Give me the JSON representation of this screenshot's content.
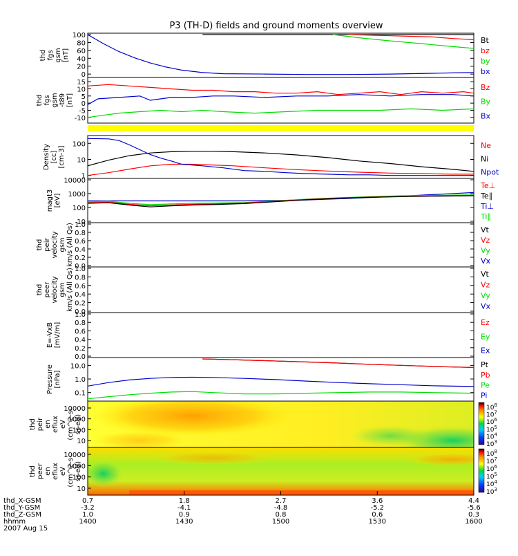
{
  "title": "P3 (TH-D) fields and ground moments overview",
  "colors": {
    "black": "#000000",
    "red": "#ff0000",
    "green": "#00dd00",
    "blue": "#0000cc",
    "yellow": "#ffff00"
  },
  "chart_data": {
    "type": "line",
    "panels": [
      {
        "id": "fgs-mag",
        "ylabel_lines": [
          "thd",
          "fgs",
          "gsm",
          "[nT]"
        ],
        "ylim": [
          -5,
          100
        ],
        "yticks": [
          "100",
          "80",
          "60",
          "40",
          "20",
          "0"
        ],
        "legend": [
          {
            "text": "Bt",
            "color": "black"
          },
          {
            "text": "bz",
            "color": "red"
          },
          {
            "text": "by",
            "color": "green"
          },
          {
            "text": "bx",
            "color": "blue"
          }
        ],
        "series": [
          {
            "name": "Bt",
            "color": "black",
            "x": [
              1.8,
              2.2,
              2.7,
              3.2,
              3.6,
              4.0,
              4.4
            ],
            "y": [
              100,
              100,
              100,
              100,
              100,
              100,
              100
            ]
          },
          {
            "name": "bz",
            "color": "red",
            "x": [
              3.2,
              3.6,
              4.0,
              4.2,
              4.4
            ],
            "y": [
              100,
              97,
              94,
              90,
              87
            ]
          },
          {
            "name": "by",
            "color": "green",
            "x": [
              3.05,
              3.3,
              3.6,
              3.9,
              4.1,
              4.4
            ],
            "y": [
              100,
              92,
              84,
              77,
              72,
              65
            ]
          },
          {
            "name": "bx",
            "color": "blue",
            "x": [
              0.7,
              0.85,
              1.0,
              1.15,
              1.3,
              1.45,
              1.6,
              1.8,
              2.0,
              2.4,
              2.8,
              3.2,
              3.6,
              4.0,
              4.2,
              4.4
            ],
            "y": [
              100,
              77,
              57,
              41,
              28,
              18,
              10,
              4,
              1,
              0,
              -1,
              -1,
              0,
              2,
              3,
              4
            ]
          }
        ]
      },
      {
        "id": "fgs-diff",
        "ylabel_lines": [
          "thd",
          "fgs",
          "gsm",
          "-t89",
          "[nT]"
        ],
        "ylim": [
          -13,
          17
        ],
        "yticks": [
          "15",
          "10",
          "5",
          "0",
          "-5",
          "-10"
        ],
        "legend": [
          {
            "text": "Bz",
            "color": "red"
          },
          {
            "text": "By",
            "color": "green"
          },
          {
            "text": "Bx",
            "color": "blue"
          }
        ],
        "series": [
          {
            "name": "Bz",
            "color": "red",
            "x": [
              0.7,
              0.9,
              1.1,
              1.3,
              1.5,
              1.7,
              1.9,
              2.1,
              2.3,
              2.5,
              2.7,
              2.9,
              3.1,
              3.3,
              3.5,
              3.7,
              3.9,
              4.1,
              4.3,
              4.4
            ],
            "y": [
              12,
              13,
              12,
              11,
              10,
              9,
              9,
              8,
              8,
              7,
              7,
              8,
              6,
              7,
              8,
              6,
              8,
              7,
              8,
              7
            ]
          },
          {
            "name": "By",
            "color": "green",
            "x": [
              0.7,
              0.8,
              1.0,
              1.2,
              1.4,
              1.6,
              1.8,
              2.0,
              2.3,
              2.6,
              2.9,
              3.2,
              3.5,
              3.8,
              4.1,
              4.4
            ],
            "y": [
              -10,
              -9,
              -7,
              -6,
              -5,
              -6,
              -5,
              -6,
              -7,
              -6,
              -5,
              -5,
              -5,
              -4,
              -5,
              -4
            ]
          },
          {
            "name": "Bx",
            "color": "blue",
            "x": [
              0.7,
              0.8,
              1.0,
              1.2,
              1.3,
              1.5,
              1.7,
              1.9,
              2.1,
              2.4,
              2.7,
              3.0,
              3.3,
              3.6,
              3.9,
              4.2,
              4.4
            ],
            "y": [
              -1,
              3,
              4,
              5,
              2,
              4,
              4,
              5,
              5,
              4,
              5,
              5,
              6,
              5,
              6,
              6,
              5
            ]
          }
        ]
      },
      {
        "id": "density",
        "ylabel_lines": [
          "Density",
          "[cc]",
          "[cm-3]"
        ],
        "log": true,
        "ylim": [
          0.8,
          250
        ],
        "yticks": [
          "100",
          "10",
          "1"
        ],
        "legend": [
          {
            "text": "Ne",
            "color": "red"
          },
          {
            "text": "Ni",
            "color": "black"
          },
          {
            "text": "Npot",
            "color": "blue"
          }
        ],
        "series": [
          {
            "name": "Ni",
            "color": "black",
            "x": [
              0.7,
              0.9,
              1.1,
              1.3,
              1.5,
              1.7,
              1.9,
              2.1,
              2.4,
              2.7,
              3.0,
              3.3,
              3.6,
              3.9,
              4.2,
              4.4
            ],
            "y": [
              4,
              9,
              17,
              25,
              30,
              32,
              32,
              30,
              25,
              19,
              13,
              8,
              5.5,
              3.5,
              2.4,
              1.8
            ]
          },
          {
            "name": "Ne",
            "color": "red",
            "x": [
              0.7,
              0.9,
              1.1,
              1.3,
              1.5,
              1.7,
              1.9,
              2.1,
              2.4,
              2.7,
              3.0,
              3.3,
              3.6,
              3.9,
              4.2,
              4.4
            ],
            "y": [
              1,
              1.5,
              2.5,
              4,
              5,
              5,
              4.5,
              4,
              3,
              2.3,
              1.9,
              1.6,
              1.4,
              1.3,
              1.2,
              1.2
            ]
          },
          {
            "name": "Npot",
            "color": "blue",
            "x": [
              0.7,
              0.9,
              1.0,
              1.1,
              1.2,
              1.3,
              1.4,
              1.5,
              1.6,
              1.8,
              2.0,
              2.2,
              2.4,
              2.6,
              2.8,
              3.0,
              3.2,
              3.4,
              3.6,
              3.8,
              4.0,
              4.2,
              4.4
            ],
            "y": [
              200,
              190,
              150,
              80,
              40,
              20,
              12,
              8,
              5,
              4,
              3,
              2,
              1.8,
              1.5,
              1.3,
              1.2,
              1.1,
              1.1,
              1,
              1,
              1,
              1,
              1
            ]
          }
        ]
      },
      {
        "id": "temperature",
        "ylabel_lines": [
          "magt3",
          "[eV]"
        ],
        "log": true,
        "ylim": [
          10,
          10000
        ],
        "yticks": [
          "10000",
          "1000",
          "100",
          "10"
        ],
        "legend": [
          {
            "text": "Te⊥",
            "color": "red"
          },
          {
            "text": "Te∥",
            "color": "black"
          },
          {
            "text": "Ti⊥",
            "color": "blue"
          },
          {
            "text": "Ti∥",
            "color": "green"
          }
        ],
        "series": [
          {
            "name": "Ti⊥",
            "color": "blue",
            "x": [
              0.7,
              1.0,
              1.3,
              1.6,
              1.9,
              2.2,
              2.5,
              2.8,
              3.1,
              3.4,
              3.7,
              4.0,
              4.4
            ],
            "y": [
              300,
              300,
              300,
              300,
              300,
              300,
              320,
              350,
              420,
              520,
              650,
              850,
              1200
            ]
          },
          {
            "name": "Ti∥",
            "color": "green",
            "x": [
              0.7,
              0.9,
              1.1,
              1.3,
              1.5,
              1.7,
              1.9,
              2.2,
              2.5,
              2.8,
              3.1,
              3.4,
              3.7,
              4.0,
              4.4
            ],
            "y": [
              250,
              280,
              200,
              160,
              180,
              200,
              210,
              230,
              300,
              400,
              500,
              600,
              700,
              750,
              800
            ]
          },
          {
            "name": "Te⊥",
            "color": "red",
            "x": [
              0.7,
              0.9,
              1.1,
              1.3,
              1.5,
              1.7,
              1.9,
              2.2,
              2.5,
              2.8,
              3.1,
              3.4,
              3.7,
              4.0,
              4.4
            ],
            "y": [
              220,
              240,
              170,
              130,
              150,
              170,
              180,
              210,
              280,
              380,
              480,
              560,
              620,
              680,
              720
            ]
          },
          {
            "name": "Te∥",
            "color": "black",
            "x": [
              0.7,
              0.9,
              1.1,
              1.3,
              1.5,
              1.7,
              1.9,
              2.2,
              2.5,
              2.8,
              3.1,
              3.4,
              3.7,
              4.0,
              4.4
            ],
            "y": [
              200,
              220,
              150,
              110,
              130,
              150,
              160,
              190,
              260,
              360,
              460,
              540,
              600,
              650,
              700
            ]
          }
        ]
      },
      {
        "id": "peir-velocity",
        "ylabel_lines": [
          "thd",
          "peir",
          "velocity",
          "gsm",
          "km/s (All Qs)"
        ],
        "ylim": [
          0,
          1
        ],
        "yticks": [
          "1.0",
          "0.8",
          "0.6",
          "0.4",
          "0.2",
          "0.0"
        ],
        "legend": [
          {
            "text": "Vt",
            "color": "black"
          },
          {
            "text": "Vz",
            "color": "red"
          },
          {
            "text": "Vy",
            "color": "green"
          },
          {
            "text": "Vx",
            "color": "blue"
          }
        ],
        "series": []
      },
      {
        "id": "peer-velocity",
        "ylabel_lines": [
          "thd",
          "peer",
          "velocity",
          "gsm",
          "km/s (All Qs)"
        ],
        "ylim": [
          0,
          1
        ],
        "yticks": [
          "1.0",
          "0.8",
          "0.6",
          "0.4",
          "0.2",
          "0.0"
        ],
        "legend": [
          {
            "text": "Vt",
            "color": "black"
          },
          {
            "text": "Vz",
            "color": "red"
          },
          {
            "text": "Vy",
            "color": "green"
          },
          {
            "text": "Vx",
            "color": "blue"
          }
        ],
        "series": []
      },
      {
        "id": "efield",
        "ylabel_lines": [
          "E=-VxB",
          "[mV/m]"
        ],
        "ylim": [
          0,
          1
        ],
        "yticks": [
          "1.0",
          "0.8",
          "0.6",
          "0.4",
          "0.2",
          "0.0"
        ],
        "legend": [
          {
            "text": "Ez",
            "color": "red"
          },
          {
            "text": "Ey",
            "color": "green"
          },
          {
            "text": "Ex",
            "color": "blue"
          }
        ],
        "series": []
      },
      {
        "id": "pressure",
        "ylabel_lines": [
          "Pressure",
          "[nPa]"
        ],
        "log": true,
        "ylim": [
          0.03,
          30
        ],
        "yticks": [
          "10.0",
          "1.0",
          "0.1"
        ],
        "legend": [
          {
            "text": "Pt",
            "color": "black"
          },
          {
            "text": "Pb",
            "color": "red"
          },
          {
            "text": "Pe",
            "color": "green"
          },
          {
            "text": "Pi",
            "color": "blue"
          }
        ],
        "series": [
          {
            "name": "Pt",
            "color": "black",
            "x": [
              1.8,
              2.2,
              2.6,
              3.0,
              3.4,
              3.8,
              4.1,
              4.4
            ],
            "y": [
              30,
              25,
              20,
              16,
              12,
              9.5,
              8,
              7
            ]
          },
          {
            "name": "Pb",
            "color": "red",
            "x": [
              1.8,
              2.2,
              2.6,
              3.0,
              3.4,
              3.8,
              4.1,
              4.4
            ],
            "y": [
              30,
              25,
              20,
              16,
              12,
              9.5,
              8,
              7
            ]
          },
          {
            "name": "Pi",
            "color": "blue",
            "x": [
              0.7,
              0.9,
              1.1,
              1.3,
              1.5,
              1.7,
              1.9,
              2.2,
              2.5,
              2.8,
              3.1,
              3.4,
              3.7,
              4.0,
              4.4
            ],
            "y": [
              0.3,
              0.55,
              0.85,
              1.1,
              1.3,
              1.35,
              1.3,
              1.1,
              0.9,
              0.7,
              0.55,
              0.45,
              0.38,
              0.32,
              0.28
            ]
          },
          {
            "name": "Pe",
            "color": "green",
            "x": [
              0.7,
              0.9,
              1.1,
              1.3,
              1.5,
              1.7,
              1.9,
              2.2,
              2.5,
              2.8,
              3.1,
              3.4,
              3.7,
              4.0,
              4.4
            ],
            "y": [
              0.035,
              0.05,
              0.07,
              0.09,
              0.11,
              0.12,
              0.1,
              0.08,
              0.08,
              0.09,
              0.1,
              0.11,
              0.11,
              0.1,
              0.09
            ]
          }
        ]
      },
      {
        "id": "peir-spec",
        "type": "heatmap",
        "ylabel_lines": [
          "thd",
          "peir",
          "en",
          "eflux",
          "eV",
          "(cm^2-s-",
          "sr-eV)"
        ],
        "yticks": [
          "10000",
          "1000",
          "100",
          "10"
        ],
        "colorbar_ticks": [
          "10^8",
          "10^7",
          "10^6",
          "10^5",
          "10^4",
          "10^3"
        ]
      },
      {
        "id": "peer-spec",
        "type": "heatmap",
        "ylabel_lines": [
          "thd",
          "peer",
          "en",
          "eflux",
          "eV",
          "(cm^2-s-",
          "sr-eV)"
        ],
        "yticks": [
          "10000",
          "1000",
          "100",
          "10"
        ],
        "colorbar_ticks": [
          "10^8",
          "10^7",
          "10^6",
          "10^5",
          "10^4",
          "10^3"
        ]
      }
    ],
    "x_axis": {
      "range": [
        0.7,
        4.4
      ],
      "rows": [
        {
          "label": "thd_X-GSM",
          "ticks": [
            "0.7",
            "1.8",
            "2.7",
            "3.6",
            "4.4"
          ]
        },
        {
          "label": "thd_Y-GSM",
          "ticks": [
            "-3.2",
            "-4.1",
            "-4.8",
            "-5.2",
            "-5.6"
          ]
        },
        {
          "label": "thd_Z-GSM",
          "ticks": [
            "1.0",
            "0.9",
            "0.8",
            "0.6",
            "0.3"
          ]
        },
        {
          "label": "hhmm",
          "ticks": [
            "1400",
            "1430",
            "1500",
            "1530",
            "1600"
          ]
        }
      ],
      "date": "2007 Aug 15"
    }
  }
}
